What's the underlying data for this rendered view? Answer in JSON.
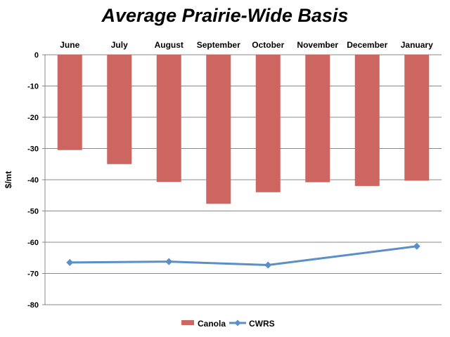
{
  "chart_data": {
    "type": "bar",
    "title": "Average Prairie-Wide Basis",
    "ylabel": "$/mt",
    "xlabel": "",
    "categories": [
      "June",
      "July",
      "August",
      "September",
      "October",
      "November",
      "December",
      "January"
    ],
    "series": [
      {
        "name": "Canola",
        "type": "bar",
        "color": "#cd6660",
        "values": [
          -30.5,
          -35.0,
          -40.7,
          -47.7,
          -44.0,
          -40.8,
          -42.0,
          -40.3
        ]
      },
      {
        "name": "CWRS",
        "type": "line",
        "color": "#5b8fc7",
        "x": [
          "June",
          "August",
          "October",
          "January"
        ],
        "values": [
          -66.5,
          -66.2,
          -67.3,
          -61.3
        ]
      }
    ],
    "ylim": [
      -80,
      0
    ],
    "yticks": [
      0,
      -10,
      -20,
      -30,
      -40,
      -50,
      -60,
      -70,
      -80
    ],
    "ytick_labels": [
      "0",
      "-10",
      "-20",
      "-30",
      "-40",
      "-50",
      "-60",
      "-70",
      "-80"
    ],
    "grid": true,
    "category_axis_position": "top",
    "legend_position": "bottom"
  }
}
